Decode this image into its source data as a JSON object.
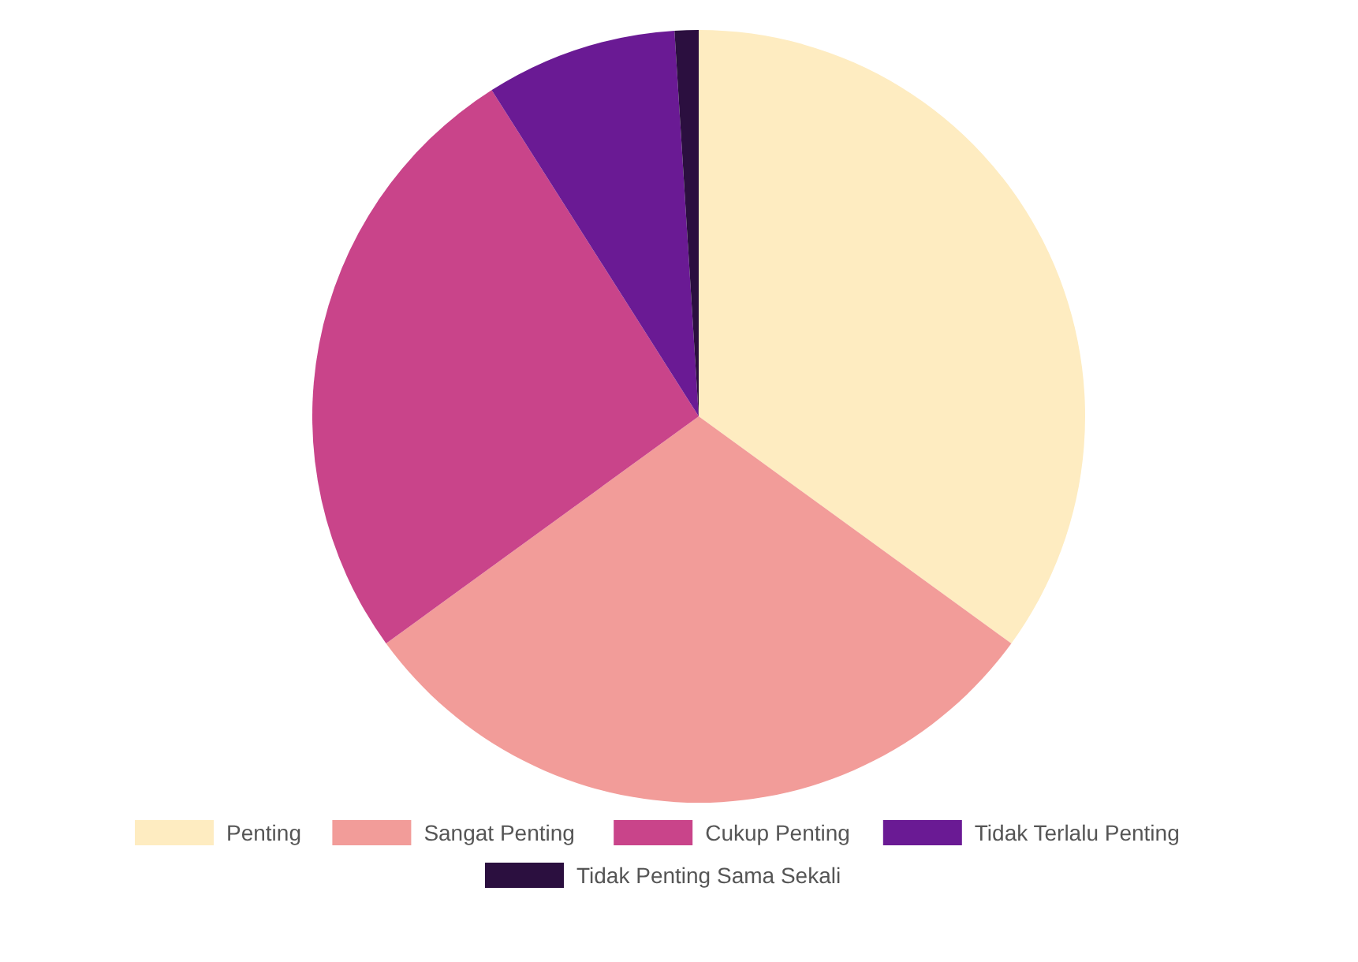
{
  "chart_data": {
    "type": "pie",
    "categories": [
      "Penting",
      "Sangat Penting",
      "Cukup Penting",
      "Tidak Terlalu Penting",
      "Tidak Penting Sama Sekali"
    ],
    "values": [
      35,
      30,
      26,
      8,
      1
    ],
    "colors": [
      "#feecc1",
      "#f29c99",
      "#c9448a",
      "#6a1a94",
      "#2b0f3f"
    ],
    "legend": "bottom"
  }
}
